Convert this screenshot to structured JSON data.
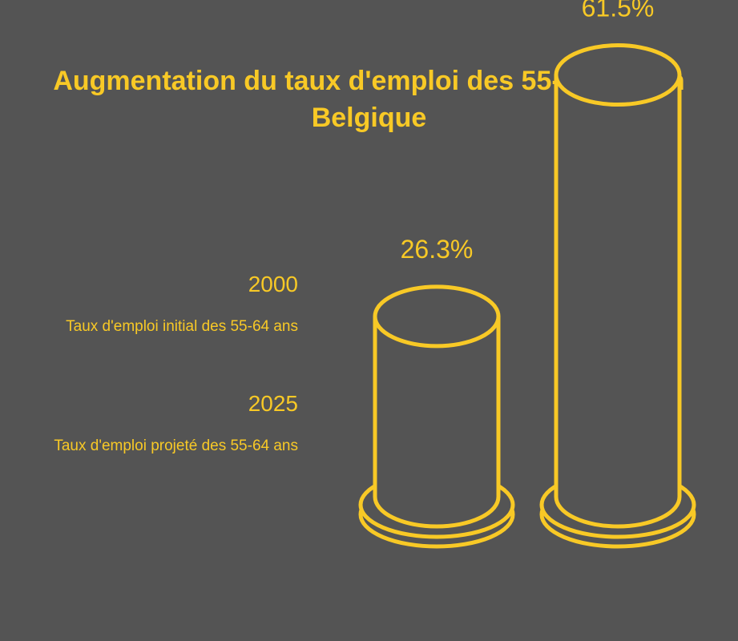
{
  "chart_data": {
    "type": "bar",
    "title": "Augmentation du taux d'emploi des 55-64 ans en Belgique",
    "categories": [
      "2000",
      "2025"
    ],
    "values": [
      26.3,
      61.5
    ],
    "value_labels": [
      "26.3%",
      "61.5%"
    ],
    "legend": [
      {
        "year": "2000",
        "description": "Taux d'emploi initial des 55-64 ans"
      },
      {
        "year": "2025",
        "description": "Taux d'emploi projeté des 55-64 ans"
      }
    ],
    "ylim": [
      0,
      70
    ],
    "grid": false,
    "legend_position": "left"
  },
  "colors": {
    "background": "#545454",
    "accent": "#f8c926"
  }
}
